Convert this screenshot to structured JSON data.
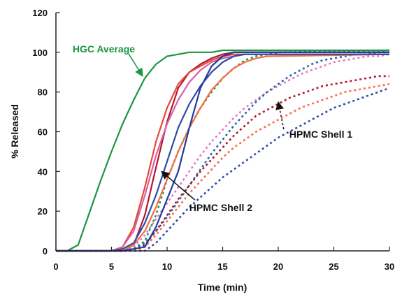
{
  "chart_data": {
    "type": "line",
    "title": "",
    "xlabel": "Time (min)",
    "ylabel": "% Released",
    "xlim": [
      0,
      30
    ],
    "ylim": [
      0,
      120
    ],
    "xticks": [
      0,
      5,
      10,
      15,
      20,
      25,
      30
    ],
    "yticks": [
      0,
      20,
      40,
      60,
      80,
      100,
      120
    ],
    "grid": false,
    "legend": "none",
    "series": [
      {
        "color": "#1a9641",
        "dash": false,
        "x": [
          0,
          1,
          2,
          3,
          4,
          5,
          6,
          7,
          8,
          9,
          10,
          11,
          12,
          13,
          14,
          15,
          16,
          17,
          18,
          30
        ],
        "y": [
          0,
          0,
          3,
          19,
          35,
          50,
          64,
          76,
          87,
          94,
          98,
          99,
          100,
          100,
          100,
          101,
          101,
          101,
          101,
          101
        ]
      },
      {
        "color": "#b2182b",
        "dash": false,
        "x": [
          0,
          5,
          6,
          7,
          8,
          9,
          10,
          11,
          12,
          13,
          14,
          15,
          16,
          17,
          18,
          30
        ],
        "y": [
          0,
          0,
          0,
          3,
          18,
          42,
          65,
          82,
          90,
          94,
          97,
          99,
          100,
          100,
          100,
          100
        ]
      },
      {
        "color": "#e34a33",
        "dash": false,
        "x": [
          0,
          5,
          6,
          7,
          8,
          9,
          10,
          11,
          12,
          13,
          14,
          15,
          16,
          17,
          18,
          30
        ],
        "y": [
          0,
          0,
          2,
          12,
          32,
          55,
          72,
          84,
          90,
          93,
          96,
          98,
          99,
          99,
          99,
          99
        ]
      },
      {
        "color": "#d95fa6",
        "dash": false,
        "x": [
          0,
          5,
          6,
          7,
          8,
          9,
          10,
          11,
          12,
          13,
          14,
          15,
          16,
          17,
          18,
          30
        ],
        "y": [
          0,
          0,
          2,
          10,
          28,
          48,
          64,
          76,
          85,
          91,
          95,
          97,
          98,
          99,
          99,
          99
        ]
      },
      {
        "color": "#f46d43",
        "dash": false,
        "x": [
          0,
          5,
          6,
          7,
          8,
          9,
          10,
          11,
          12,
          13,
          14,
          15,
          16,
          17,
          18,
          19,
          30
        ],
        "y": [
          0,
          0,
          0,
          3,
          10,
          22,
          36,
          50,
          62,
          72,
          81,
          87,
          92,
          95,
          97,
          98,
          99
        ]
      },
      {
        "color": "#2c4aa8",
        "dash": false,
        "x": [
          0,
          5,
          6,
          7,
          8,
          9,
          10,
          11,
          12,
          13,
          14,
          15,
          16,
          17,
          30
        ],
        "y": [
          0,
          0,
          1,
          4,
          14,
          28,
          45,
          62,
          74,
          83,
          90,
          95,
          98,
          99,
          99
        ]
      },
      {
        "color": "#1f3b9e",
        "dash": false,
        "x": [
          0,
          5,
          6,
          7,
          8,
          9,
          10,
          11,
          12,
          13,
          14,
          15,
          16,
          17,
          30
        ],
        "y": [
          0,
          0,
          0,
          1,
          2,
          12,
          26,
          40,
          62,
          82,
          93,
          98,
          100,
          100,
          100
        ]
      },
      {
        "color": "#1a9641",
        "dash": true,
        "x": [
          0,
          5,
          6,
          7,
          8,
          9,
          10,
          11,
          12,
          13,
          14,
          15,
          16,
          17,
          18,
          19,
          20,
          30
        ],
        "y": [
          0,
          0,
          0,
          1,
          5,
          18,
          36,
          50,
          62,
          72,
          80,
          87,
          92,
          96,
          98,
          99,
          100,
          101
        ]
      },
      {
        "color": "#e377c2",
        "dash": true,
        "x": [
          0,
          6,
          7,
          8,
          9,
          10,
          11,
          12,
          13,
          14,
          15,
          16,
          17,
          18,
          19,
          20,
          21,
          22,
          23,
          24,
          25,
          26,
          27,
          28,
          29,
          30
        ],
        "y": [
          0,
          0,
          2,
          8,
          16,
          24,
          32,
          40,
          48,
          55,
          61,
          67,
          72,
          76,
          80,
          83,
          86,
          89,
          91,
          93,
          95,
          96,
          97,
          98,
          98,
          99
        ]
      },
      {
        "color": "#2166ac",
        "dash": true,
        "x": [
          0,
          6,
          7,
          8,
          9,
          10,
          11,
          12,
          13,
          14,
          15,
          16,
          17,
          18,
          19,
          20,
          21,
          22,
          23,
          24,
          25,
          26,
          27,
          28,
          29,
          30
        ],
        "y": [
          0,
          0,
          1,
          4,
          10,
          17,
          25,
          33,
          41,
          49,
          56,
          63,
          69,
          75,
          80,
          84,
          88,
          91,
          94,
          96,
          97,
          98,
          99,
          99,
          100,
          100
        ]
      },
      {
        "color": "#b2182b",
        "dash": true,
        "x": [
          0,
          7,
          8,
          9,
          10,
          11,
          12,
          13,
          14,
          15,
          16,
          17,
          18,
          19,
          20,
          21,
          22,
          23,
          24,
          25,
          26,
          27,
          28,
          29,
          30
        ],
        "y": [
          0,
          0,
          3,
          10,
          18,
          26,
          33,
          40,
          46,
          52,
          58,
          63,
          68,
          71,
          74,
          77,
          79,
          81,
          83,
          84,
          85,
          86,
          87,
          88,
          88
        ]
      },
      {
        "color": "#fb6a4a",
        "dash": true,
        "x": [
          0,
          7,
          8,
          9,
          10,
          11,
          12,
          13,
          14,
          15,
          16,
          17,
          18,
          19,
          20,
          21,
          22,
          23,
          24,
          25,
          26,
          27,
          28,
          29,
          30
        ],
        "y": [
          0,
          0,
          2,
          8,
          15,
          22,
          29,
          35,
          41,
          47,
          52,
          56,
          60,
          63,
          66,
          69,
          72,
          74,
          76,
          78,
          80,
          81,
          82,
          83,
          84
        ]
      },
      {
        "color": "#2c4aa8",
        "dash": true,
        "x": [
          0,
          8,
          9,
          10,
          11,
          12,
          13,
          14,
          15,
          16,
          17,
          18,
          19,
          20,
          21,
          22,
          23,
          24,
          25,
          26,
          27,
          28,
          29,
          30
        ],
        "y": [
          0,
          0,
          4,
          10,
          16,
          22,
          27,
          32,
          37,
          41,
          45,
          49,
          53,
          57,
          60,
          63,
          66,
          69,
          72,
          74,
          76,
          78,
          80,
          82
        ]
      }
    ],
    "annotations": [
      {
        "text": "HGC Average",
        "color": "#1a9641",
        "x": 1.5,
        "y": 100,
        "arrow_to": [
          7.8,
          88
        ]
      },
      {
        "text": "HPMC Shell 2",
        "color": "#111111",
        "x": 12,
        "y": 20,
        "arrow_to": [
          9.5,
          40
        ]
      },
      {
        "text": "HPMC Shell 1",
        "color": "#111111",
        "x": 21,
        "y": 57,
        "arrow_to": [
          20,
          75
        ]
      }
    ]
  }
}
